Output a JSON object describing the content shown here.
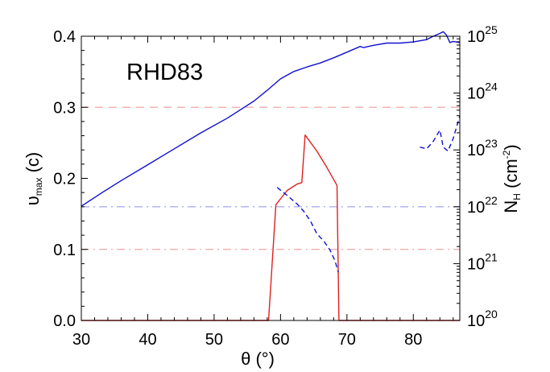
{
  "chart_data": {
    "type": "line",
    "annotation": "RHD83",
    "xlabel": {
      "main": "θ (°)"
    },
    "ylabel_left": {
      "main": "υ",
      "sub": "max",
      "unit": " (c)"
    },
    "ylabel_right": {
      "main": "N",
      "sub": "H",
      "unit_open": " (cm",
      "unit_exp": "-2",
      "unit_close": ")"
    },
    "xlim": [
      30,
      87
    ],
    "ylim_left": [
      0,
      0.4
    ],
    "ylim_right_log10": [
      20,
      25
    ],
    "x_ticks": [
      {
        "value": 30,
        "label": "30"
      },
      {
        "value": 40,
        "label": "40"
      },
      {
        "value": 50,
        "label": "50"
      },
      {
        "value": 60,
        "label": "60"
      },
      {
        "value": 70,
        "label": "70"
      },
      {
        "value": 80,
        "label": "80"
      }
    ],
    "y_ticks_left": [
      {
        "value": 0.0,
        "label": "0.0"
      },
      {
        "value": 0.1,
        "label": "0.1"
      },
      {
        "value": 0.2,
        "label": "0.2"
      },
      {
        "value": 0.3,
        "label": "0.3"
      },
      {
        "value": 0.4,
        "label": "0.4"
      }
    ],
    "y_ticks_right": [
      {
        "value": 20,
        "base": "10",
        "exp": "20"
      },
      {
        "value": 21,
        "base": "10",
        "exp": "21"
      },
      {
        "value": 22,
        "base": "10",
        "exp": "22"
      },
      {
        "value": 23,
        "base": "10",
        "exp": "23"
      },
      {
        "value": 24,
        "base": "10",
        "exp": "24"
      },
      {
        "value": 25,
        "base": "10",
        "exp": "25"
      }
    ],
    "reference_lines": [
      {
        "axis": "left",
        "y": 0.3,
        "color": "#f4a6a6",
        "style": "dashed"
      },
      {
        "axis": "left",
        "y": 0.1,
        "color": "#f4a6a6",
        "style": "dashdot"
      },
      {
        "axis": "right",
        "y": 22,
        "color": "#9a9af0",
        "style": "dashdot"
      }
    ],
    "series": [
      {
        "axis": "right",
        "color": "#1010d0",
        "style": "solid",
        "x": [
          30,
          33,
          36,
          40,
          44,
          48,
          52,
          56,
          58,
          60,
          62,
          64,
          66,
          68,
          70,
          72,
          72.5,
          74,
          76,
          78,
          80,
          82,
          83,
          84,
          84.5,
          85,
          85.5,
          86,
          87
        ],
        "y": [
          22.01,
          22.24,
          22.46,
          22.74,
          23.02,
          23.3,
          23.56,
          23.86,
          24.05,
          24.25,
          24.38,
          24.46,
          24.53,
          24.62,
          24.72,
          24.82,
          24.8,
          24.84,
          24.88,
          24.88,
          24.9,
          24.94,
          25.0,
          25.05,
          25.08,
          25.02,
          24.89,
          24.91,
          24.89
        ]
      },
      {
        "axis": "left",
        "color": "#e02020",
        "style": "solid",
        "x": [
          30,
          58.2,
          59.3,
          61,
          62.5,
          63.2,
          63.7,
          65.5,
          67,
          68.5,
          68.8,
          87
        ],
        "y": [
          0.0,
          0.0,
          0.163,
          0.183,
          0.192,
          0.194,
          0.261,
          0.238,
          0.215,
          0.19,
          0.0,
          0.0
        ]
      },
      {
        "axis": "right",
        "color": "#1010d0",
        "style": "dashed",
        "x": [
          59.5,
          61,
          62.5,
          63.5,
          64.5,
          65.5,
          66.5,
          67.5,
          68.2,
          68.7
        ],
        "y": [
          22.34,
          22.2,
          22.05,
          21.92,
          21.75,
          21.52,
          21.4,
          21.23,
          21.05,
          20.85
        ]
      },
      {
        "axis": "right",
        "color": "#1010d0",
        "style": "dashed",
        "x": [
          81,
          82,
          83,
          84,
          84.5,
          85.2,
          86,
          87
        ],
        "y": [
          23.05,
          23.02,
          23.15,
          23.35,
          23.05,
          22.98,
          23.2,
          23.6
        ]
      }
    ],
    "annotation_color": "#f04a10"
  }
}
